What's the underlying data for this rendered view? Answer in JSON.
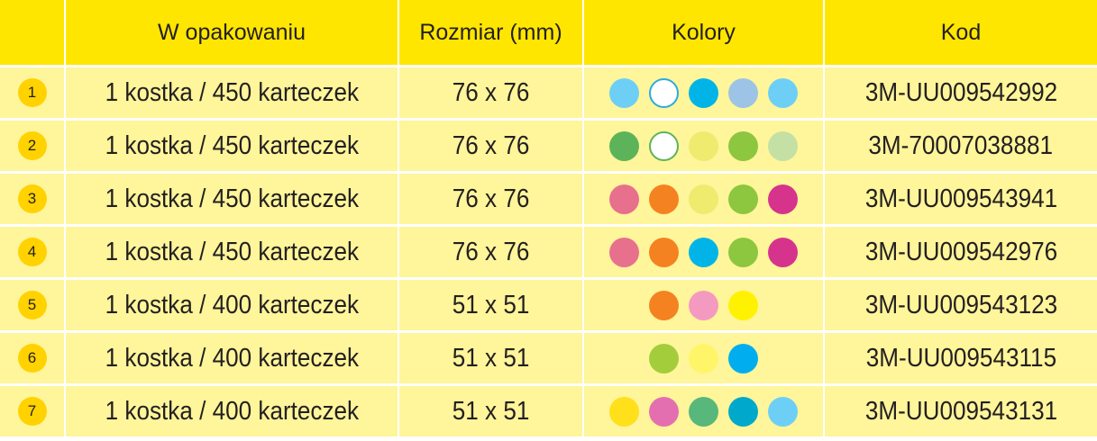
{
  "table": {
    "header": [
      "W opakowaniu",
      "Rozmiar (mm)",
      "Kolory",
      "Kod"
    ],
    "rows": [
      {
        "number": "1",
        "package": "1 kostka / 450 karteczek",
        "size": "76 x 76",
        "colors": [
          "#6dcff6",
          {
            "fill": "#ffffff",
            "stroke": "#29abe2"
          },
          "#00b4e8",
          "#9dc3e6",
          "#6dcff6"
        ],
        "code": "3M-UU009542992"
      },
      {
        "number": "2",
        "package": "1 kostka / 450 karteczek",
        "size": "76 x 76",
        "colors": [
          "#5db35a",
          {
            "fill": "#ffffff",
            "stroke": "#5db35a"
          },
          "#eeeb6f",
          "#8dc63f",
          "#c5e0a5"
        ],
        "code": "3M-70007038881"
      },
      {
        "number": "3",
        "package": "1 kostka / 450 karteczek",
        "size": "76 x 76",
        "colors": [
          "#e7708d",
          "#f58220",
          "#eeeb6f",
          "#8dc63f",
          "#d6338d"
        ],
        "code": "3M-UU009543941"
      },
      {
        "number": "4",
        "package": "1 kostka / 450 karteczek",
        "size": "76 x 76",
        "colors": [
          "#e7708d",
          "#f58220",
          "#00b4e8",
          "#8dc63f",
          "#d6338d"
        ],
        "code": "3M-UU009542976"
      },
      {
        "number": "5",
        "package": "1 kostka / 400 karteczek",
        "size": "51 x 51",
        "colors": [
          "#f58220",
          "#f49ac1",
          "#fff200"
        ],
        "code": "3M-UU009543123"
      },
      {
        "number": "6",
        "package": "1 kostka / 400 karteczek",
        "size": "51 x 51",
        "colors": [
          "#a3cd3a",
          "#fff568",
          "#00aeef"
        ],
        "code": "3M-UU009543115"
      },
      {
        "number": "7",
        "package": "1 kostka / 400 karteczek",
        "size": "51 x 51",
        "colors": [
          "#ffe01b",
          "#e46fb0",
          "#58b77a",
          "#00a9cc",
          "#6dcff6"
        ],
        "code": "3M-UU009543131"
      }
    ]
  }
}
